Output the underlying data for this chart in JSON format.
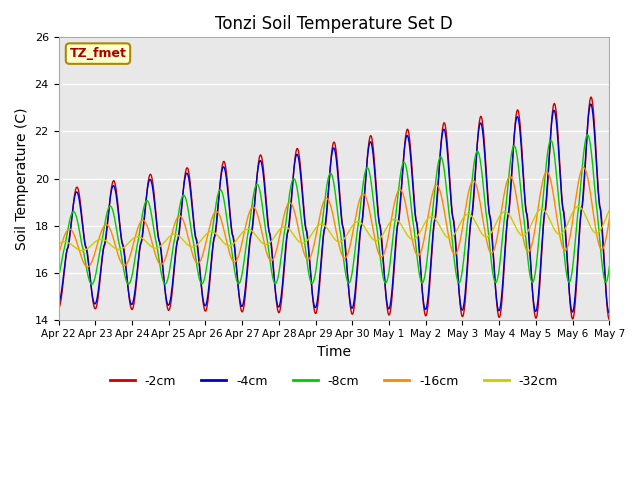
{
  "title": "Tonzi Soil Temperature Set D",
  "xlabel": "Time",
  "ylabel": "Soil Temperature (C)",
  "ylim": [
    14,
    26
  ],
  "ytick_values": [
    14,
    16,
    18,
    20,
    22,
    24,
    26
  ],
  "xtick_labels": [
    "Apr 22",
    "Apr 23",
    "Apr 24",
    "Apr 25",
    "Apr 26",
    "Apr 27",
    "Apr 28",
    "Apr 29",
    "Apr 30",
    "May 1",
    "May 2",
    "May 3",
    "May 4",
    "May 5",
    "May 6",
    "May 7"
  ],
  "series_colors": [
    "#cc0000",
    "#0000cc",
    "#00cc00",
    "#ff8800",
    "#cccc00"
  ],
  "series_labels": [
    "-2cm",
    "-4cm",
    "-8cm",
    "-16cm",
    "-32cm"
  ],
  "legend_label": "TZ_fmet",
  "legend_bg": "#ffffcc",
  "legend_border": "#aa8800",
  "plot_bg": "#e8e8e8",
  "title_fontsize": 12,
  "axis_label_fontsize": 10,
  "figsize": [
    6.4,
    4.8
  ],
  "dpi": 100
}
